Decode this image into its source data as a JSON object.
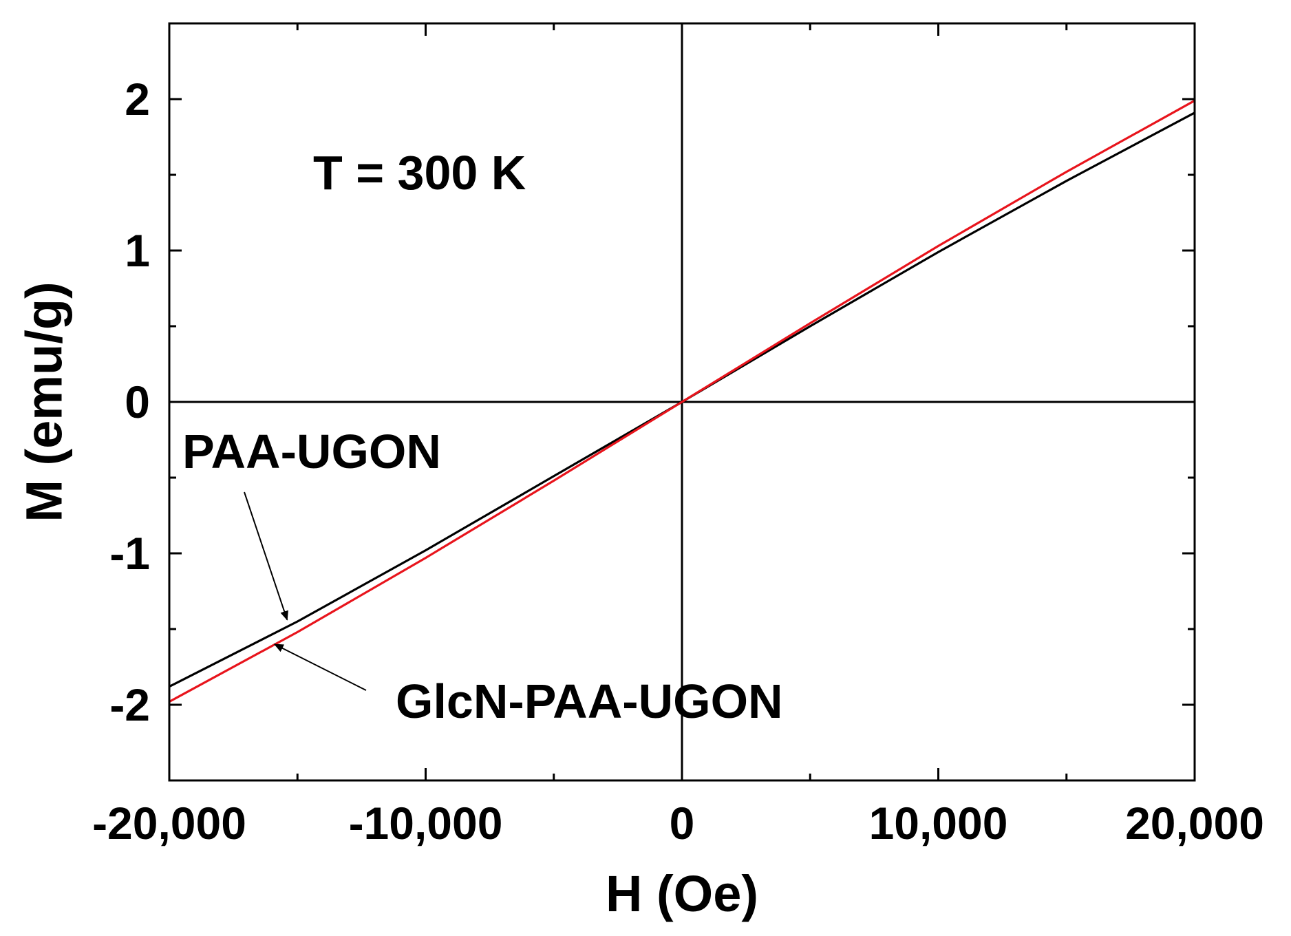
{
  "chart_data": {
    "type": "line",
    "title": "",
    "annotation": "T = 300 K",
    "xlabel": "H (Oe)",
    "ylabel": "M (emu/g)",
    "xlim": [
      -20000,
      20000
    ],
    "ylim": [
      -2.5,
      2.5
    ],
    "xticks": [
      -20000,
      -10000,
      0,
      10000,
      20000
    ],
    "xtick_labels": [
      "-20,000",
      "-10,000",
      "0",
      "10,000",
      "20,000"
    ],
    "yticks": [
      -2,
      -1,
      0,
      1,
      2
    ],
    "ytick_labels": [
      "-2",
      "-1",
      "0",
      "1",
      "2"
    ],
    "grid": false,
    "zero_lines": true,
    "series": [
      {
        "name": "PAA-UGON",
        "color": "#000000",
        "x": [
          -20000,
          -15000,
          -10000,
          -5000,
          0,
          5000,
          10000,
          15000,
          20000
        ],
        "y": [
          -1.88,
          -1.45,
          -0.98,
          -0.49,
          0.0,
          0.5,
          0.99,
          1.46,
          1.91
        ]
      },
      {
        "name": "GlcN-PAA-UGON",
        "color": "#e8141c",
        "x": [
          -20000,
          -15000,
          -10000,
          -5000,
          0,
          5000,
          10000,
          15000,
          20000
        ],
        "y": [
          -1.98,
          -1.52,
          -1.03,
          -0.52,
          0.0,
          0.52,
          1.03,
          1.52,
          1.99
        ]
      }
    ],
    "series_labels": [
      {
        "text": "PAA-UGON",
        "points_to": {
          "x": -15400,
          "y": -1.44
        }
      },
      {
        "text": "GlcN-PAA-UGON",
        "points_to": {
          "x": -15900,
          "y": -1.6
        }
      }
    ]
  }
}
